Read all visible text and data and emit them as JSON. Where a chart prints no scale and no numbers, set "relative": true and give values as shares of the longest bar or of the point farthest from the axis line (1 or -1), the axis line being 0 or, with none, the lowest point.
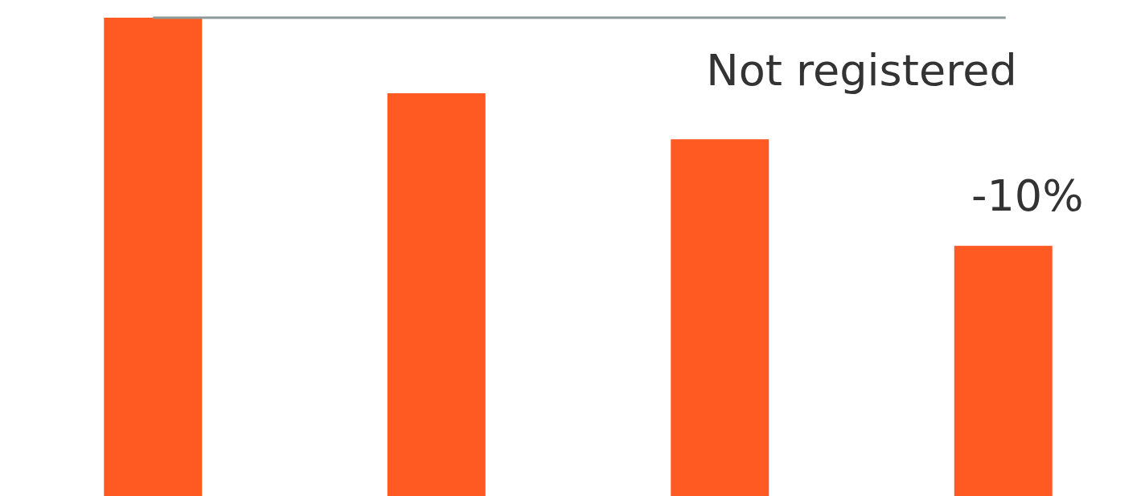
{
  "chart_data": {
    "type": "bar",
    "relative": true,
    "categories": [
      null,
      null,
      null,
      null
    ],
    "series": [
      {
        "color": "#ff5a22",
        "values": [
          1,
          0.842,
          0.746,
          0.523
        ]
      }
    ],
    "ref_lines": [
      {
        "axis": "y",
        "value": 1,
        "color": "#8e9a9a"
      }
    ],
    "annotations": [
      "Not registered",
      "-10%"
    ],
    "legend": false
  }
}
